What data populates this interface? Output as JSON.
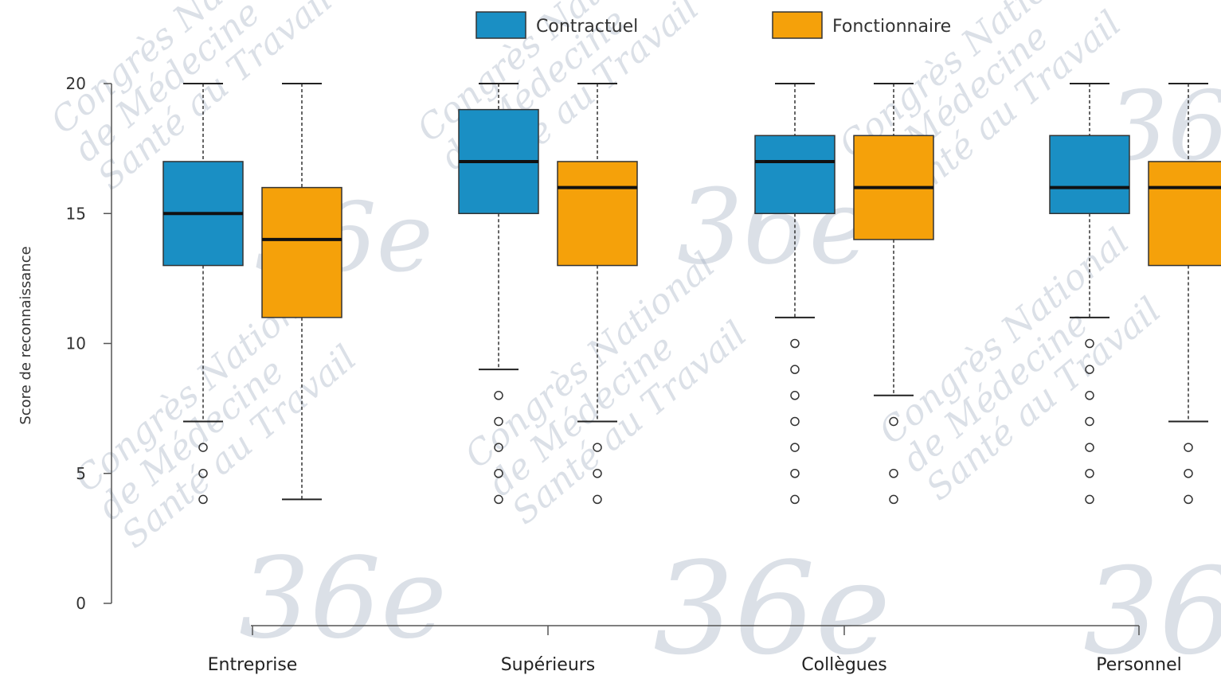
{
  "chart_data": {
    "type": "boxplot",
    "ylabel": "Score de reconnaissance",
    "ylim": [
      0,
      20
    ],
    "yticks": [
      0,
      5,
      10,
      15,
      20
    ],
    "categories": [
      "Entreprise",
      "Supérieurs",
      "Collègues",
      "Personnel"
    ],
    "legend": {
      "placement": "top"
    },
    "series": [
      {
        "name": "Contractuel",
        "color": "#1a8fc4",
        "boxes": [
          {
            "min": 7,
            "q1": 13,
            "median": 15,
            "q3": 17,
            "max": 20,
            "outliers": [
              4,
              5,
              6
            ]
          },
          {
            "min": 9,
            "q1": 15,
            "median": 17,
            "q3": 19,
            "max": 20,
            "outliers": [
              4,
              5,
              6,
              7,
              8
            ]
          },
          {
            "min": 11,
            "q1": 15,
            "median": 17,
            "q3": 18,
            "max": 20,
            "outliers": [
              4,
              5,
              6,
              7,
              8,
              9,
              10
            ]
          },
          {
            "min": 11,
            "q1": 15,
            "median": 16,
            "q3": 18,
            "max": 20,
            "outliers": [
              4,
              5,
              6,
              7,
              8,
              9,
              10
            ]
          }
        ]
      },
      {
        "name": "Fonctionnaire",
        "color": "#f5a10a",
        "boxes": [
          {
            "min": 4,
            "q1": 11,
            "median": 14,
            "q3": 16,
            "max": 20,
            "outliers": []
          },
          {
            "min": 7,
            "q1": 13,
            "median": 16,
            "q3": 17,
            "max": 20,
            "outliers": [
              4,
              5,
              6
            ]
          },
          {
            "min": 8,
            "q1": 14,
            "median": 16,
            "q3": 18,
            "max": 20,
            "outliers": [
              4,
              5,
              7
            ]
          },
          {
            "min": 7,
            "q1": 13,
            "median": 16,
            "q3": 17,
            "max": 20,
            "outliers": [
              4,
              5,
              6
            ]
          }
        ]
      }
    ]
  },
  "watermark": {
    "lines": [
      "Congrès National",
      "de Médecine",
      "Santé au Travail"
    ],
    "mark": "36e"
  }
}
